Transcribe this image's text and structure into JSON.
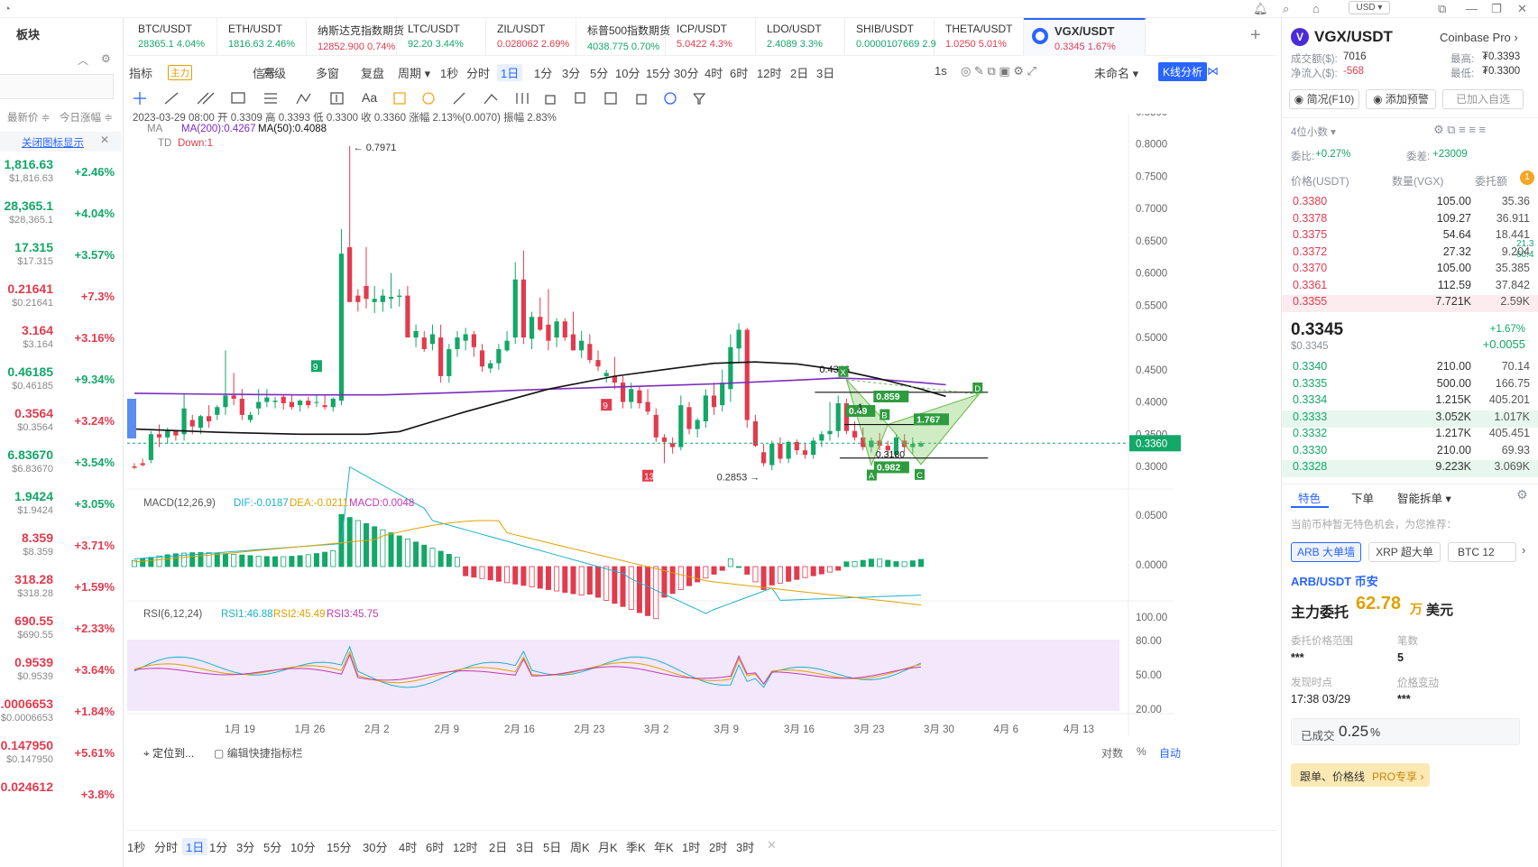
{
  "left_panel": {
    "title": "板块",
    "sort_latest": "最新价 ≑",
    "sort_change": "今日涨幅 ≑",
    "close_icon_label": "关闭图标显示",
    "rows": [
      {
        "price": "1,816.63",
        "sub": "$1,816.63",
        "change": "+2.46%",
        "color": "green"
      },
      {
        "price": "28,365.1",
        "sub": "$28,365.1",
        "change": "+4.04%",
        "color": "green"
      },
      {
        "price": "17.315",
        "sub": "$17.315",
        "change": "+3.57%",
        "color": "green"
      },
      {
        "price": "0.21641",
        "sub": "$0.21641",
        "change": "+7.3%",
        "color": "red"
      },
      {
        "price": "3.164",
        "sub": "$3.164",
        "change": "+3.16%",
        "color": "red"
      },
      {
        "price": "0.46185",
        "sub": "$0.46185",
        "change": "+9.34%",
        "color": "green"
      },
      {
        "price": "0.3564",
        "sub": "$0.3564",
        "change": "+3.24%",
        "color": "red"
      },
      {
        "price": "6.83670",
        "sub": "$6.83670",
        "change": "+3.54%",
        "color": "green"
      },
      {
        "price": "1.9424",
        "sub": "$1.9424",
        "change": "+3.05%",
        "color": "green"
      },
      {
        "price": "8.359",
        "sub": "$8.359",
        "change": "+3.71%",
        "color": "red"
      },
      {
        "price": "318.28",
        "sub": "$318.28",
        "change": "+1.59%",
        "color": "red"
      },
      {
        "price": "690.55",
        "sub": "$690.55",
        "change": "+2.33%",
        "color": "red"
      },
      {
        "price": "0.9539",
        "sub": "$0.9539",
        "change": "+3.64%",
        "color": "red"
      },
      {
        "price": "0.0006653",
        "sub": "$0.0006653",
        "change": "+1.84%",
        "color": "red"
      },
      {
        "price": "0.147950",
        "sub": "$0.147950",
        "change": "+5.61%",
        "color": "red"
      },
      {
        "price": "0.024612",
        "sub": "",
        "change": "+3.8%",
        "color": "red"
      }
    ]
  },
  "topbar": {
    "currency": "USD ▾"
  },
  "tabs": [
    {
      "name": "BTC/USDT",
      "value": "28365.1 4.04%",
      "color": "green"
    },
    {
      "name": "ETH/USDT",
      "value": "1816.63 2.46%",
      "color": "green"
    },
    {
      "name": "纳斯达克指数期货",
      "value": "12852.900 0.74%",
      "color": "red"
    },
    {
      "name": "LTC/USDT",
      "value": "92.20 3.44%",
      "color": "green"
    },
    {
      "name": "ZIL/USDT",
      "value": "0.028062 2.69%",
      "color": "red"
    },
    {
      "name": "标普500指数期货",
      "value": "4038.775 0.70%",
      "color": "green"
    },
    {
      "name": "ICP/USDT",
      "value": "5.0422 4.3%",
      "color": "red"
    },
    {
      "name": "LDO/USDT",
      "value": "2.4089 3.3%",
      "color": "green"
    },
    {
      "name": "SHIB/USDT",
      "value": "0.0000107669 2.9",
      "color": "green"
    },
    {
      "name": "THETA/USDT",
      "value": "1.0250 5.01%",
      "color": "red"
    },
    {
      "name": "VGX/USDT",
      "value": "0.3345 1.67%",
      "color": "red"
    }
  ],
  "toolbar1": {
    "items": [
      "指标",
      "主力",
      "信号",
      "高级",
      "多窗",
      "复盘",
      "周期 ▾",
      "1秒",
      "分时",
      "1日",
      "1分",
      "3分",
      "5分",
      "10分",
      "15分",
      "30分",
      "4时",
      "6时",
      "12时",
      "2日",
      "3日"
    ],
    "right": [
      "1s",
      "未命名 ▾",
      "K线分析"
    ]
  },
  "toolbar2": {
    "text_tool": "Aa"
  },
  "chart": {
    "info_line": "2023-03-29 08:00 开 0.3309 高 0.3393 低 0.3300 收 0.3360 涨幅 2.13%(0.0070) 振幅 2.83%",
    "ma_label": "MA",
    "ma200": "MA(200):0.4267",
    "ma50": "MA(50):0.4088",
    "td_label": "TD",
    "td_down": "Down:1",
    "macd_title": "MACD(12,26,9)",
    "macd_dif": "DIF:-0.0187",
    "macd_dea": "DEA:-0.0211",
    "macd_macd": "MACD:0.0048",
    "rsi_title": "RSI(6,12,24)",
    "rsi1": "RSI1:46.88",
    "rsi2": "RSI2:45.49",
    "rsi3": "RSI3:45.75",
    "high_label": "0.7971",
    "low_label": "0.2853",
    "current_price": "0.3360",
    "price_ticks": [
      "0.8500",
      "0.8000",
      "0.7500",
      "0.7000",
      "0.6500",
      "0.6000",
      "0.5500",
      "0.5000",
      "0.4500",
      "0.4000",
      "0.3500",
      "0.3000"
    ],
    "macd_ticks": [
      "0.0500",
      "0.0000"
    ],
    "rsi_ticks": [
      "100.00",
      "80.00",
      "50.00",
      "20.00"
    ],
    "dates": [
      "1月 19",
      "1月 26",
      "2月 2",
      "2月 9",
      "2月 16",
      "2月 23",
      "3月 2",
      "3月 9",
      "3月 16",
      "3月 23",
      "3月 30",
      "4月 6",
      "4月 13"
    ],
    "pattern_labels": [
      "0.4346",
      "0.859",
      "0.49",
      "1.767",
      "0.982",
      "0.3180",
      "A",
      "B",
      "C",
      "D",
      "X",
      "1"
    ],
    "td_marks": [
      "9",
      "9",
      "13"
    ],
    "bottom_left": "定位到...",
    "bottom_edit": "编辑快捷指标栏",
    "bottom_right": [
      "对数",
      "%",
      "自动"
    ]
  },
  "bottom_timeframes": [
    "1秒",
    "分时",
    "1日",
    "1分",
    "3分",
    "5分",
    "10分",
    "15分",
    "30分",
    "4时",
    "6时",
    "12时",
    "2日",
    "3日",
    "5日",
    "周K",
    "月K",
    "季K",
    "年K",
    "1时",
    "2时",
    "3时"
  ],
  "right_panel": {
    "pair": "VGX/USDT",
    "exchange": "Coinbase Pro ›",
    "volume_label": "成交额($):",
    "volume": "7016",
    "inflow_label": "净流入($):",
    "inflow": "-568",
    "high_label": "最高:",
    "high": "₮0.3393",
    "low_label": "最低:",
    "low": "₮0.3300",
    "btn_simple": "简况(F10)",
    "btn_alert": "添加预警",
    "btn_added": "已加入自选",
    "decimals": "4位小数 ▾",
    "weibi_label": "委比:",
    "weibi": "+0.27%",
    "weicha_label": "委差:",
    "weicha": "+23009",
    "col_price": "价格(USDT)",
    "col_qty": "数量(VGX)",
    "col_total": "委托额",
    "asks": [
      {
        "p": "0.3380",
        "q": "105.00",
        "t": "35.36"
      },
      {
        "p": "0.3378",
        "q": "109.27",
        "t": "36.911"
      },
      {
        "p": "0.3375",
        "q": "54.64",
        "t": "18.441"
      },
      {
        "p": "0.3372",
        "q": "27.32",
        "t": "9.204"
      },
      {
        "p": "0.3370",
        "q": "105.00",
        "t": "35.385"
      },
      {
        "p": "0.3361",
        "q": "112.59",
        "t": "37.842"
      },
      {
        "p": "0.3355",
        "q": "7.721K",
        "t": "2.59K"
      }
    ],
    "last_price": "0.3345",
    "last_usd": "$0.3345",
    "last_change_pct": "+1.67%",
    "last_change_abs": "+0.0055",
    "bids": [
      {
        "p": "0.3340",
        "q": "210.00",
        "t": "70.14"
      },
      {
        "p": "0.3335",
        "q": "500.00",
        "t": "166.75"
      },
      {
        "p": "0.3334",
        "q": "1.215K",
        "t": "405.201"
      },
      {
        "p": "0.3333",
        "q": "3.052K",
        "t": "1.017K"
      },
      {
        "p": "0.3332",
        "q": "1.217K",
        "t": "405.451"
      },
      {
        "p": "0.3330",
        "q": "210.00",
        "t": "69.93"
      },
      {
        "p": "0.3328",
        "q": "9.223K",
        "t": "3.069K"
      }
    ],
    "side_badge": "1",
    "side_vals": [
      "21.3",
      "60.4"
    ],
    "tab_special": "特色",
    "tab_order": "下单",
    "tab_split": "智能拆单 ▾",
    "no_feature": "当前币种暂无特色机会，为您推荐：",
    "chips": [
      "ARB 大单墙",
      "XRP 超大单",
      "BTC 12"
    ],
    "rec_pair": "ARB/USDT 币安",
    "main_order_label": "主力委托",
    "main_order_value": "62.78",
    "main_order_unit": "万",
    "main_order_ccy": "美元",
    "range_label": "委托价格范围",
    "range_value": "***",
    "count_label": "笔数",
    "count_value": "5",
    "time_label": "发现时点",
    "time_value": "17:38 03/29",
    "pchg_label": "价格变动",
    "pchg_value": "***",
    "filled_label": "已成交",
    "filled_value": "0.25",
    "filled_unit": "%",
    "promo": "跟单、价格线",
    "promo_badge": "PRO专享 ›"
  }
}
